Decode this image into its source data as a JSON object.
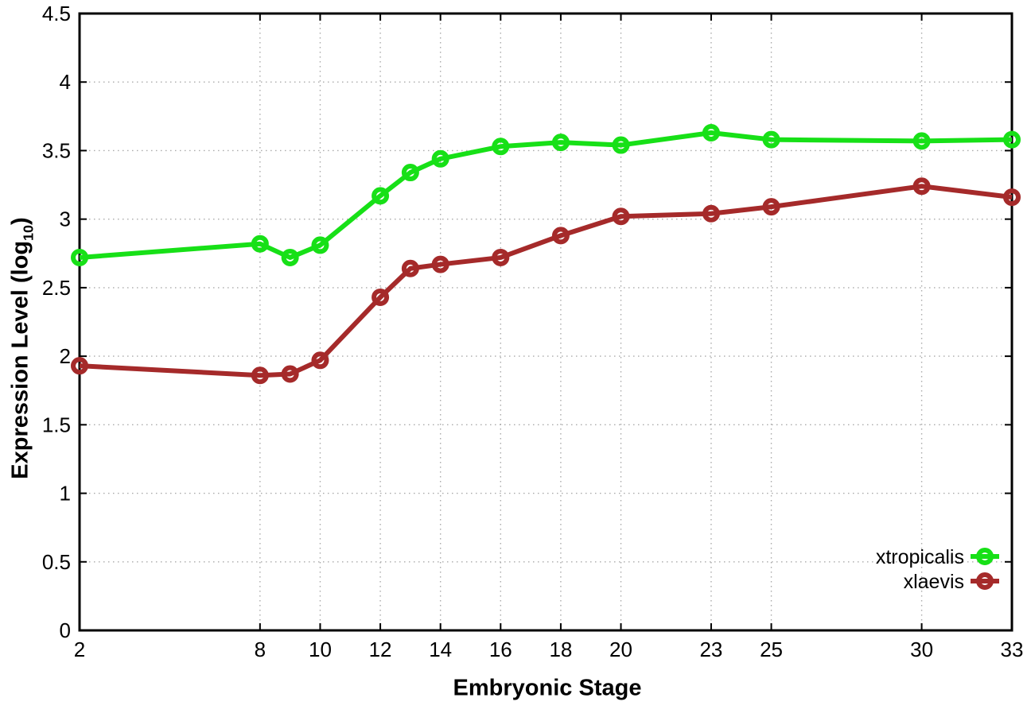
{
  "chart_data": {
    "type": "line",
    "title": "",
    "xlabel": "Embryonic Stage",
    "ylabel": "Expression Level (log10)",
    "ylabel_parts": {
      "text": "Expression Level (log",
      "sub": "10",
      "suffix": ")"
    },
    "x": [
      2,
      8,
      9,
      10,
      12,
      13,
      14,
      16,
      18,
      20,
      23,
      25,
      30,
      33
    ],
    "series": [
      {
        "name": "xtropicalis",
        "color": "#17e017",
        "values": [
          2.72,
          2.82,
          2.72,
          2.81,
          3.17,
          3.34,
          3.44,
          3.53,
          3.56,
          3.54,
          3.63,
          3.58,
          3.57,
          3.58
        ]
      },
      {
        "name": "xlaevis",
        "color": "#a52a2a",
        "values": [
          1.93,
          1.86,
          1.87,
          1.97,
          2.43,
          2.64,
          2.67,
          2.72,
          2.88,
          3.02,
          3.04,
          3.09,
          3.24,
          3.16
        ]
      }
    ],
    "xtick_labels": [
      "2",
      "8",
      "10",
      "12",
      "14",
      "16",
      "18",
      "20",
      "23",
      "25",
      "30",
      "33"
    ],
    "xtick_values": [
      2,
      8,
      10,
      12,
      14,
      16,
      18,
      20,
      23,
      25,
      30,
      33
    ],
    "ytick_labels": [
      "0",
      "0.5",
      "1",
      "1.5",
      "2",
      "2.5",
      "3",
      "3.5",
      "4",
      "4.5"
    ],
    "ytick_values": [
      0,
      0.5,
      1,
      1.5,
      2,
      2.5,
      3,
      3.5,
      4,
      4.5
    ],
    "xlim": [
      2,
      33
    ],
    "ylim": [
      0,
      4.5
    ],
    "grid": true,
    "legend_position": "inside-bottom-right",
    "legend_entries": [
      "xtropicalis",
      "xlaevis"
    ],
    "background_color": "#ffffff",
    "axis_color": "#000000",
    "grid_color": "#aaaaaa"
  }
}
